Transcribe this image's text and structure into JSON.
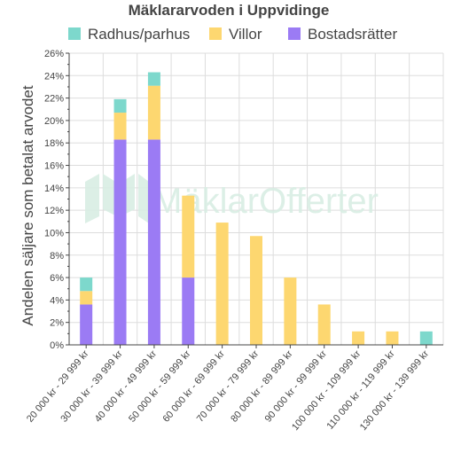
{
  "chart_data": {
    "type": "bar",
    "stacked": true,
    "title": "Mäklararvoden i Uppvidinge",
    "ylabel": "Andelen säljare som betalat arvodet",
    "xlabel": "",
    "ylim": [
      0,
      26
    ],
    "y_tick_step": 2,
    "y_tick_format": "percent",
    "grid": true,
    "legend_position": "top",
    "categories": [
      "20 000 kr - 29 999 kr",
      "30 000 kr - 39 999 kr",
      "40 000 kr - 49 999 kr",
      "50 000 kr - 59 999 kr",
      "60 000 kr - 69 999 kr",
      "70 000 kr - 79 999 kr",
      "80 000 kr - 89 999 kr",
      "90 000 kr - 99 999 kr",
      "100 000 kr - 109 999 kr",
      "110 000 kr - 119 999 kr",
      "130 000 kr - 139 999 kr"
    ],
    "series": [
      {
        "name": "Bostadsrätter",
        "color": "#9b7bf4",
        "values": [
          3.6,
          18.3,
          18.3,
          6.0,
          0,
          0,
          0,
          0,
          0,
          0,
          0
        ]
      },
      {
        "name": "Villor",
        "color": "#fdd770",
        "values": [
          1.2,
          2.4,
          4.8,
          7.3,
          10.9,
          9.7,
          6.0,
          3.6,
          1.2,
          1.2,
          0
        ]
      },
      {
        "name": "Radhus/parhus",
        "color": "#7dd8cc",
        "values": [
          1.2,
          1.2,
          1.2,
          0,
          0,
          0,
          0,
          0,
          0,
          0,
          1.2
        ]
      }
    ],
    "legend_order": [
      "Radhus/parhus",
      "Villor",
      "Bostadsrätter"
    ]
  },
  "watermark": {
    "text": "MäklarOfferter"
  }
}
